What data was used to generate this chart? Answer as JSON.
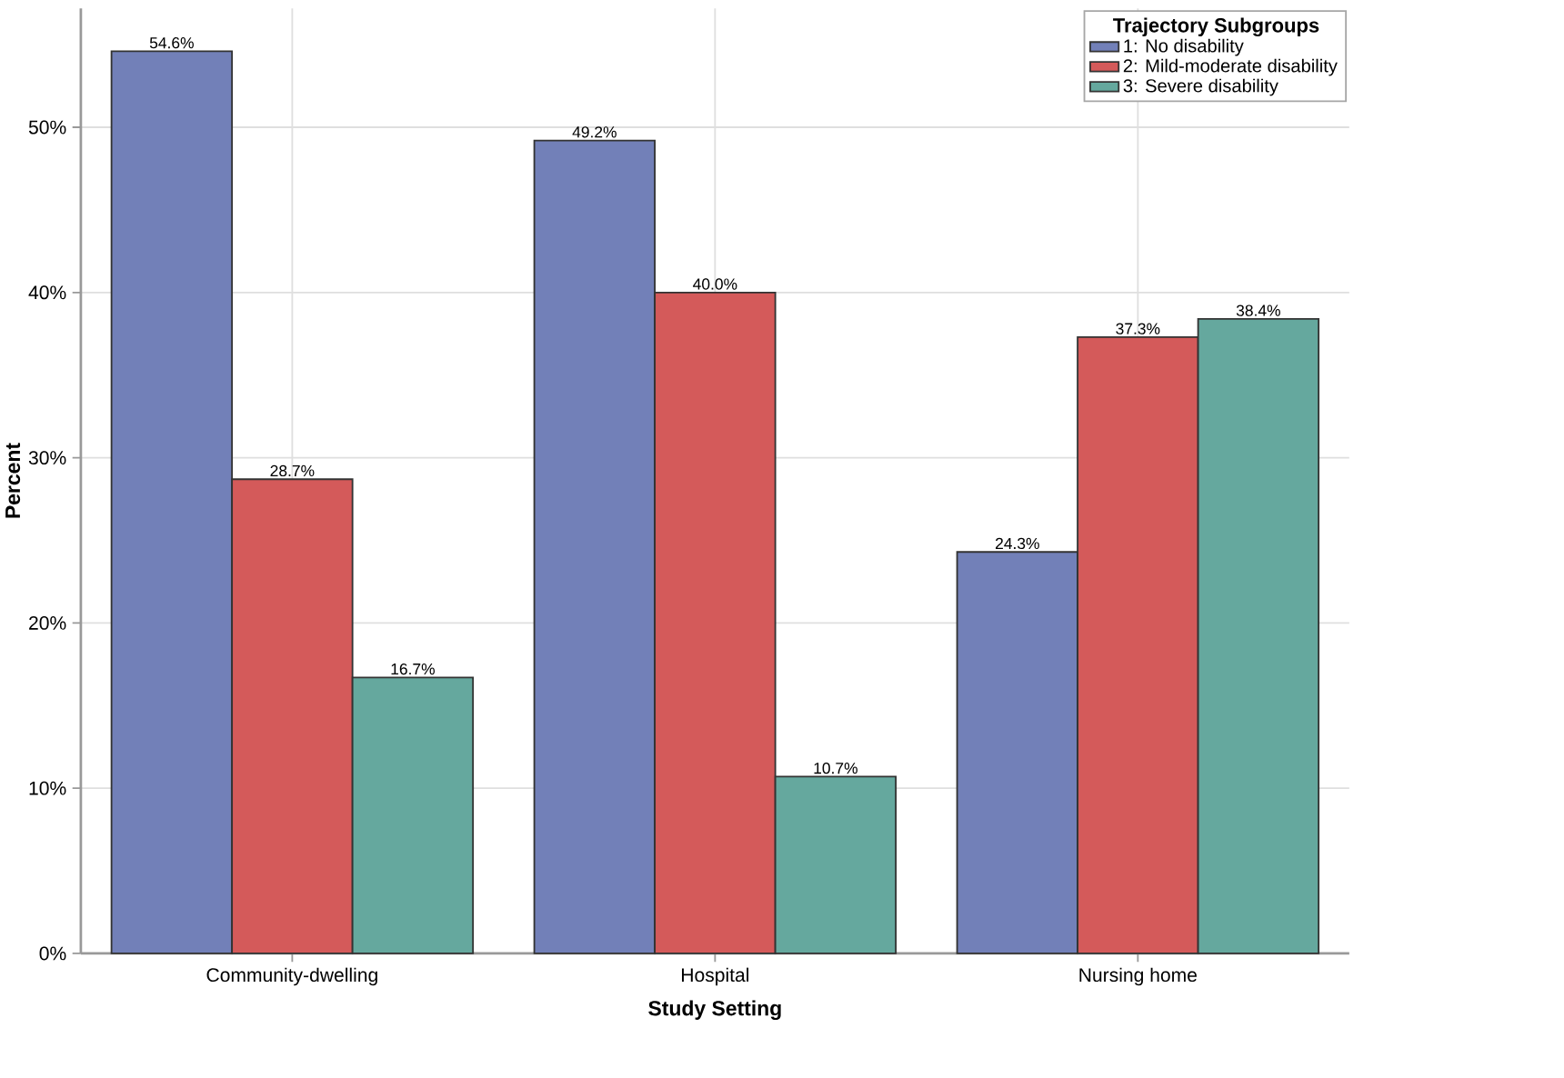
{
  "chart_data": {
    "type": "bar",
    "xlabel": "Study Setting",
    "ylabel": "Percent",
    "legend_title": "Trajectory Subgroups",
    "categories": [
      "Community-dwelling",
      "Hospital",
      "Nursing home"
    ],
    "series": [
      {
        "name": "1: No disability",
        "color": "#7280b8",
        "values": [
          54.6,
          49.2,
          24.3
        ],
        "value_labels": [
          "54.6%",
          "49.2%",
          "24.3%"
        ]
      },
      {
        "name": "2: Mild-moderate disability",
        "color": "#d45a5a",
        "values": [
          28.7,
          40.0,
          37.3
        ],
        "value_labels": [
          "28.7%",
          "40.0%",
          "37.3%"
        ]
      },
      {
        "name": "3: Severe disability",
        "color": "#65a89e",
        "values": [
          16.7,
          10.7,
          38.4
        ],
        "value_labels": [
          "16.7%",
          "10.7%",
          "38.4%"
        ]
      }
    ],
    "ylim": [
      0,
      57.2
    ],
    "yticks": [
      {
        "value": 0,
        "label": "0%"
      },
      {
        "value": 10,
        "label": "10%"
      },
      {
        "value": 20,
        "label": "20%"
      },
      {
        "value": 30,
        "label": "30%"
      },
      {
        "value": 40,
        "label": "40%"
      },
      {
        "value": 50,
        "label": "50%"
      }
    ],
    "grid": true,
    "legend": "top right"
  }
}
